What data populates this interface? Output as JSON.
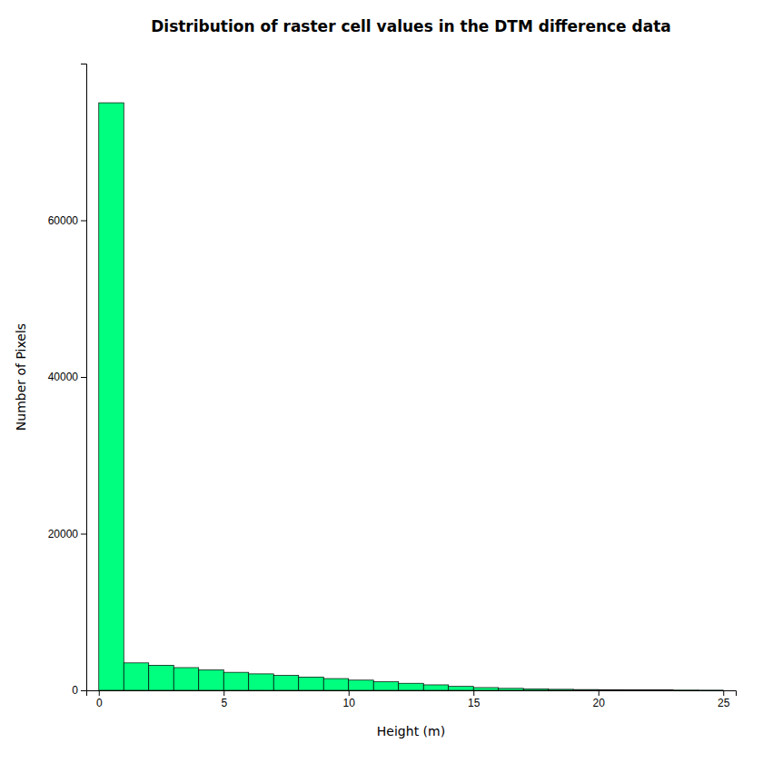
{
  "chart_data": {
    "type": "histogram",
    "title": "Distribution of raster cell values in the DTM difference data",
    "xlabel": "Height (m)",
    "ylabel": "Number of Pixels",
    "color": "#00FF7F",
    "bins": [
      0.0,
      1.0,
      2.0,
      3.0,
      4.0,
      5.0,
      6.0,
      7.0,
      8.0,
      9.0,
      10.0,
      11.0,
      12.0,
      13.0,
      14.0,
      15.0,
      16.0,
      17.0,
      18.0,
      19.0,
      20.0,
      21.0,
      22.0,
      23.0,
      24.0,
      25.0
    ],
    "values": [
      75000,
      3500,
      3200,
      2900,
      2600,
      2300,
      2100,
      1900,
      1700,
      1500,
      1300,
      1100,
      900,
      700,
      500,
      350,
      250,
      180,
      130,
      100,
      80,
      60,
      45,
      30,
      20
    ],
    "xlim": [
      -0.5,
      25.5
    ],
    "ylim": [
      0,
      80000
    ],
    "xticks": [
      0,
      5,
      10,
      15,
      20,
      25
    ],
    "yticks": [
      0,
      20000,
      40000,
      60000
    ],
    "grid": false
  }
}
